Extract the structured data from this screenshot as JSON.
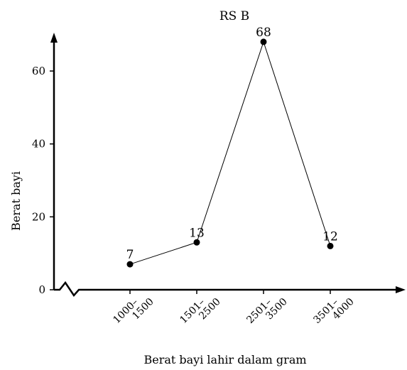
{
  "chart_data": {
    "type": "line",
    "title": "RS B",
    "xlabel": "Berat bayi lahir dalam gram",
    "ylabel": "Berat bayi",
    "categories": [
      "1000–\n1500",
      "1501–\n2500",
      "2501–\n3500",
      "3501–\n4000"
    ],
    "series": [
      {
        "values": [
          7,
          13,
          68,
          12
        ]
      }
    ],
    "data_labels": [
      "7",
      "13",
      "68",
      "12"
    ],
    "y_ticks": [
      0,
      20,
      40,
      60
    ],
    "y_tick_labels": [
      "0",
      "20",
      "40",
      "60"
    ],
    "ylim": [
      0,
      70
    ],
    "axis_break": true,
    "grid": false,
    "legend": "none",
    "colors": {
      "line": "#000000",
      "marker": "#000000",
      "axis": "#000000"
    }
  }
}
